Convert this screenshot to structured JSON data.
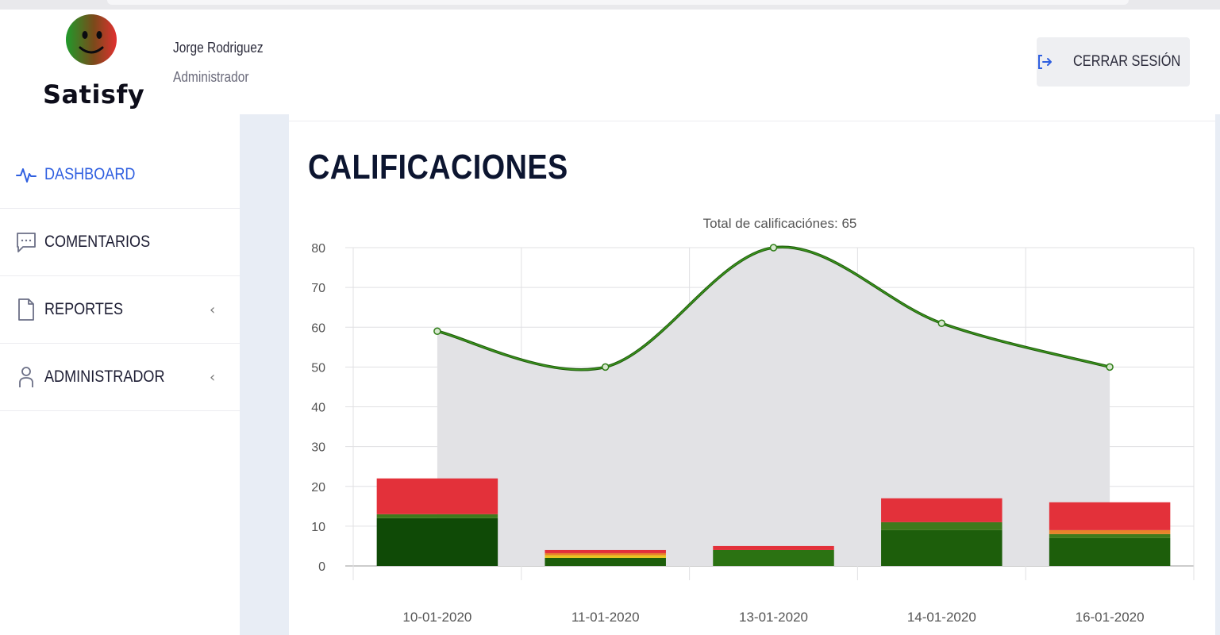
{
  "app": {
    "brand": "Satisfy"
  },
  "user": {
    "name": "Jorge Rodriguez",
    "role": "Administrador"
  },
  "header": {
    "logout_label": "CERRAR SESIÓN"
  },
  "sidebar": {
    "items": [
      {
        "label": "DASHBOARD",
        "icon": "activity-icon",
        "active": true
      },
      {
        "label": "COMENTARIOS",
        "icon": "message-square-icon",
        "active": false
      },
      {
        "label": "REPORTES",
        "icon": "file-icon",
        "active": false,
        "has_chevron": true
      },
      {
        "label": "ADMINISTRADOR",
        "icon": "user-icon",
        "active": false,
        "has_chevron": true
      }
    ],
    "chevron": "‹"
  },
  "page": {
    "title": "CALIFICACIONES"
  },
  "colors": {
    "accent": "#2f5fe0",
    "line": "#2e7d16",
    "area": "#e2e2e5",
    "dark_green": "#0f4a06",
    "green": "#2b7212",
    "light_green": "#4c9a1f",
    "yellow": "#e8c521",
    "orange": "#e8832a",
    "red": "#e3313a"
  },
  "chart_data": {
    "type": "bar",
    "title": "Total de calificaciónes: 65",
    "categories": [
      "10-01-2020",
      "11-01-2020",
      "13-01-2020",
      "14-01-2020",
      "16-01-2020"
    ],
    "ylim": [
      0,
      80
    ],
    "yticks": [
      0,
      10,
      20,
      30,
      40,
      50,
      60,
      70,
      80
    ],
    "grid": true,
    "stacked_bars": [
      [
        {
          "value": 12,
          "color": "#0f4a06"
        },
        {
          "value": 1,
          "color": "#3f7a1c"
        },
        {
          "value": 9,
          "color": "#e3313a"
        }
      ],
      [
        {
          "value": 2,
          "color": "#1d5e0b"
        },
        {
          "value": 0.7,
          "color": "#e8c521"
        },
        {
          "value": 0.5,
          "color": "#e8832a"
        },
        {
          "value": 0.8,
          "color": "#e3313a"
        }
      ],
      [
        {
          "value": 4,
          "color": "#2b7212"
        },
        {
          "value": 1,
          "color": "#e3313a"
        }
      ],
      [
        {
          "value": 9,
          "color": "#1d5e0b"
        },
        {
          "value": 2,
          "color": "#3f7a1c"
        },
        {
          "value": 6,
          "color": "#e3313a"
        }
      ],
      [
        {
          "value": 7,
          "color": "#1d5e0b"
        },
        {
          "value": 1,
          "color": "#3f7a1c"
        },
        {
          "value": 1,
          "color": "#e8832a"
        },
        {
          "value": 7,
          "color": "#e3313a"
        }
      ]
    ],
    "line": {
      "type": "area",
      "values": [
        59,
        50,
        80,
        61,
        50
      ]
    }
  }
}
